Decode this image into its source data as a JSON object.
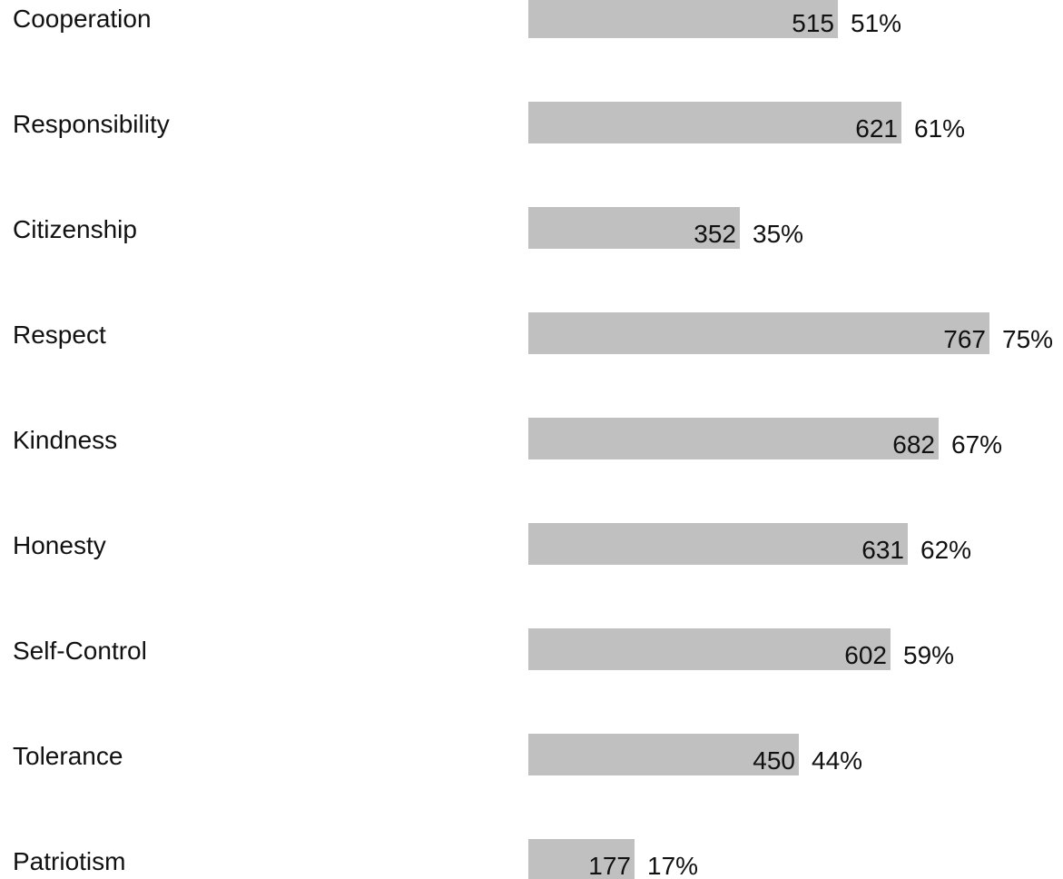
{
  "chart_data": {
    "type": "bar",
    "orientation": "horizontal",
    "categories": [
      "Cooperation",
      "Responsibility",
      "Citizenship",
      "Respect",
      "Kindness",
      "Honesty",
      "Self-Control",
      "Tolerance",
      "Patriotism"
    ],
    "values": [
      515,
      621,
      352,
      767,
      682,
      631,
      602,
      450,
      177
    ],
    "percent_labels": [
      "51%",
      "61%",
      "35%",
      "75%",
      "67%",
      "62%",
      "59%",
      "44%",
      "17%"
    ],
    "bar_color": "#c0c0c0",
    "xlim": [
      0,
      767
    ],
    "grid": false,
    "legend": "none"
  }
}
